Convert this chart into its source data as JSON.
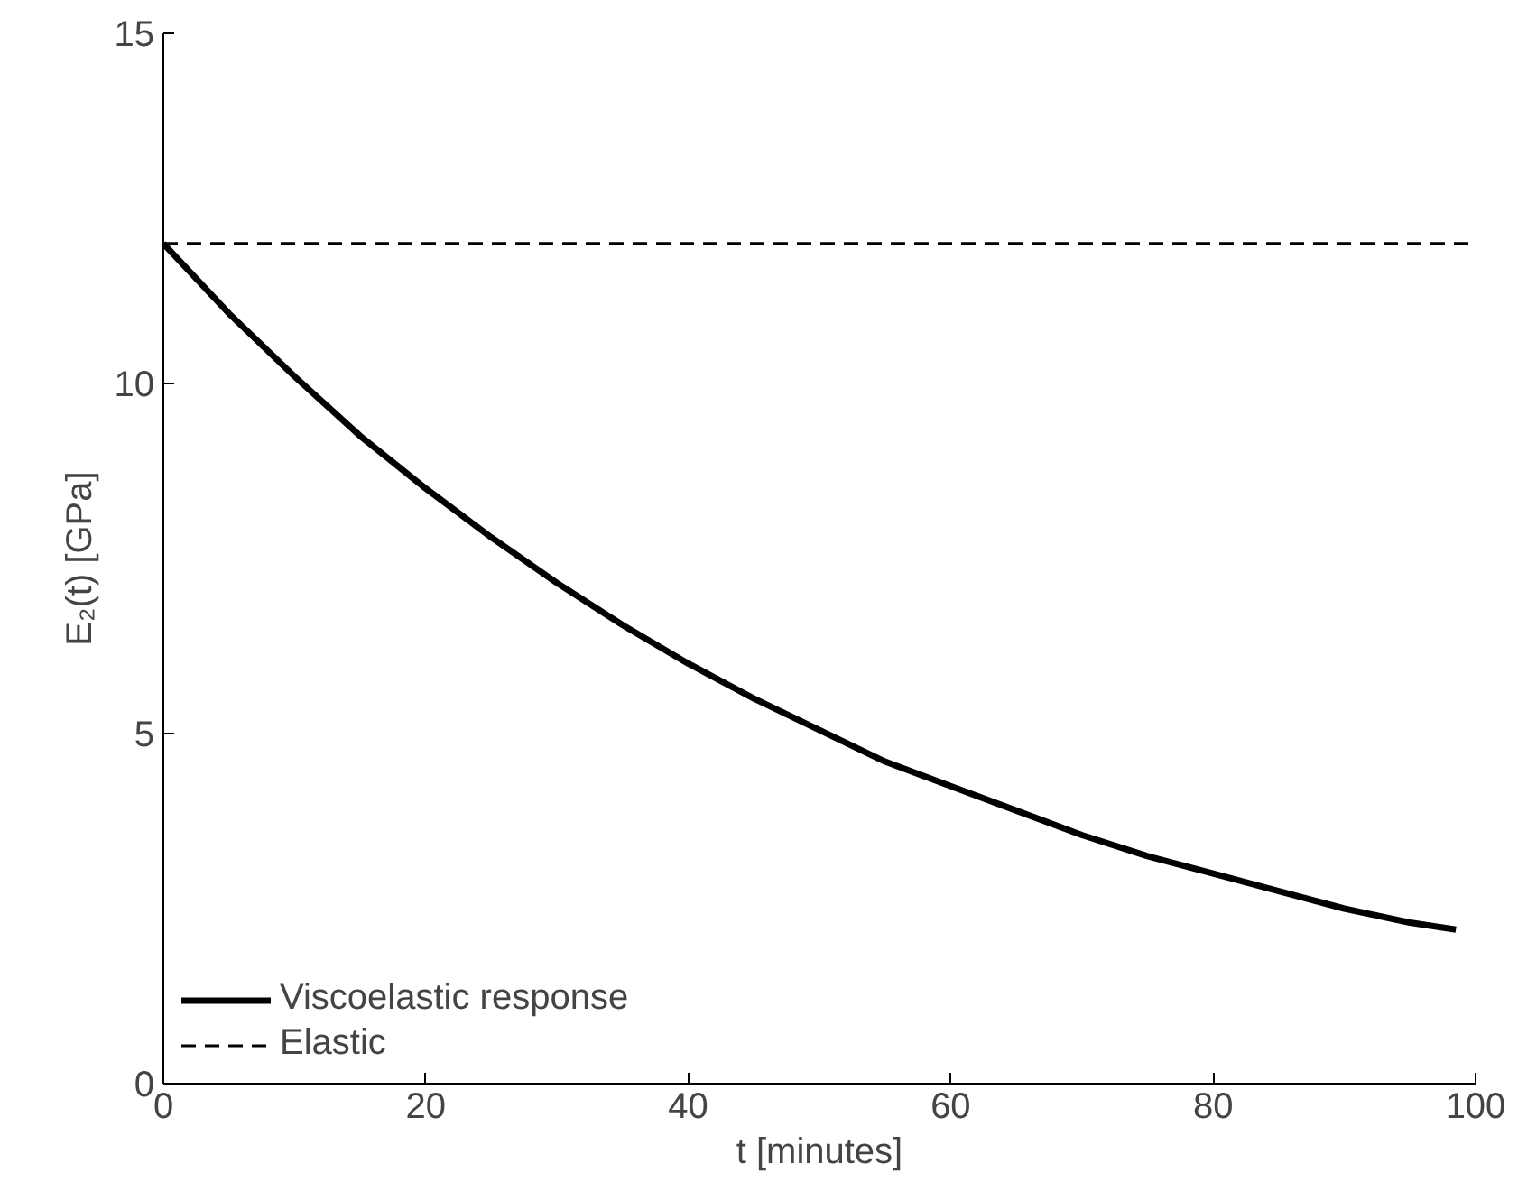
{
  "chart_data": {
    "type": "line",
    "xlabel": "t [minutes]",
    "ylabel": "E₂(t) [GPa]",
    "xlim": [
      0,
      100
    ],
    "ylim": [
      0,
      15
    ],
    "xticks": [
      0,
      20,
      40,
      60,
      80,
      100
    ],
    "yticks": [
      0,
      5,
      10,
      15
    ],
    "grid": false,
    "legend": "bottom left",
    "series": [
      {
        "name": "Viscoelastic response",
        "color": "#000000",
        "line_style": "solid",
        "x": [
          0,
          5,
          10,
          15,
          20,
          25,
          30,
          35,
          40,
          45,
          50,
          55,
          60,
          65,
          70,
          75,
          80,
          85,
          90,
          95,
          98.5
        ],
        "values": [
          12,
          11.0,
          10.1,
          9.25,
          8.5,
          7.8,
          7.15,
          6.55,
          6.0,
          5.5,
          5.05,
          4.6,
          4.25,
          3.9,
          3.55,
          3.25,
          3.0,
          2.75,
          2.5,
          2.3,
          2.2
        ]
      },
      {
        "name": "Elastic",
        "color": "#000000",
        "line_style": "dashed",
        "x": [
          0,
          100
        ],
        "values": [
          12,
          12
        ]
      }
    ]
  }
}
